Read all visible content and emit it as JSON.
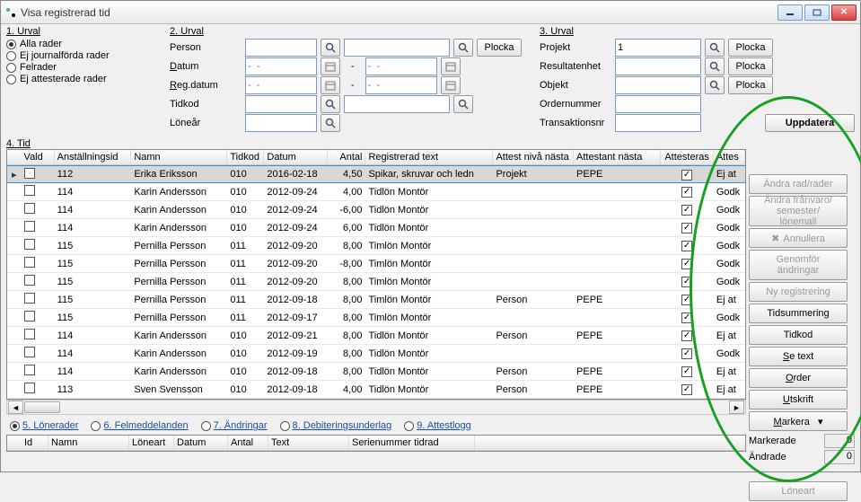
{
  "window": {
    "title": "Visa registrerad tid"
  },
  "winbtns": {
    "min": "—",
    "max": "❐",
    "close": "✕"
  },
  "urval1": {
    "label": "1. Urval",
    "options": [
      "Alla rader",
      "Ej journalförda rader",
      "Felrader",
      "Ej attesterade rader"
    ],
    "selected": 0
  },
  "urval2": {
    "label": "2. Urval",
    "rows": {
      "person": {
        "label": "Person"
      },
      "datum": {
        "label": "Datum",
        "ph": "-  -"
      },
      "regdatum": {
        "label": "Reg.datum",
        "ph": "-  -"
      },
      "tidkod": {
        "label": "Tidkod"
      },
      "lonear": {
        "label": "Löneår"
      }
    },
    "plocka": "Plocka"
  },
  "urval3": {
    "label": "3. Urval",
    "rows": {
      "projekt": {
        "label": "Projekt",
        "value": "1"
      },
      "resultatenhet": {
        "label": "Resultatenhet"
      },
      "objekt": {
        "label": "Objekt"
      },
      "ordernummer": {
        "label": "Ordernummer"
      },
      "transaktionsnr": {
        "label": "Transaktionsnr"
      }
    },
    "plocka": "Plocka",
    "uppdatera": "Uppdatera"
  },
  "grid": {
    "label": "4. Tid",
    "headers": [
      "Vald",
      "Anställningsid",
      "Namn",
      "Tidkod",
      "Datum",
      "Antal",
      "Registrerad text",
      "Attest nivå nästa",
      "Attestant nästa",
      "Attesteras",
      "Attes"
    ],
    "rows": [
      {
        "sel": true,
        "id": "112",
        "namn": "Erika Eriksson",
        "tkod": "010",
        "dat": "2016-02-18",
        "ant": "4,50",
        "reg": "Spikar, skruvar och ledn",
        "niva": "Projekt",
        "attn": "PEPE",
        "atts": true,
        "last": "Ej at"
      },
      {
        "id": "114",
        "namn": "Karin Andersson",
        "tkod": "010",
        "dat": "2012-09-24",
        "ant": "4,00",
        "reg": "Tidlön Montör",
        "niva": "",
        "attn": "",
        "atts": true,
        "last": "Godk"
      },
      {
        "id": "114",
        "namn": "Karin Andersson",
        "tkod": "010",
        "dat": "2012-09-24",
        "ant": "-6,00",
        "reg": "Tidlön Montör",
        "niva": "",
        "attn": "",
        "atts": true,
        "last": "Godk"
      },
      {
        "id": "114",
        "namn": "Karin Andersson",
        "tkod": "010",
        "dat": "2012-09-24",
        "ant": "6,00",
        "reg": "Tidlön Montör",
        "niva": "",
        "attn": "",
        "atts": true,
        "last": "Godk"
      },
      {
        "id": "115",
        "namn": "Pernilla Persson",
        "tkod": "011",
        "dat": "2012-09-20",
        "ant": "8,00",
        "reg": "Timlön Montör",
        "niva": "",
        "attn": "",
        "atts": true,
        "last": "Godk"
      },
      {
        "id": "115",
        "namn": "Pernilla Persson",
        "tkod": "011",
        "dat": "2012-09-20",
        "ant": "-8,00",
        "reg": "Timlön Montör",
        "niva": "",
        "attn": "",
        "atts": true,
        "last": "Godk"
      },
      {
        "id": "115",
        "namn": "Pernilla Persson",
        "tkod": "011",
        "dat": "2012-09-20",
        "ant": "8,00",
        "reg": "Timlön Montör",
        "niva": "",
        "attn": "",
        "atts": true,
        "last": "Godk"
      },
      {
        "id": "115",
        "namn": "Pernilla Persson",
        "tkod": "011",
        "dat": "2012-09-18",
        "ant": "8,00",
        "reg": "Timlön Montör",
        "niva": "Person",
        "attn": "PEPE",
        "atts": true,
        "last": "Ej at"
      },
      {
        "id": "115",
        "namn": "Pernilla Persson",
        "tkod": "011",
        "dat": "2012-09-17",
        "ant": "8,00",
        "reg": "Timlön Montör",
        "niva": "",
        "attn": "",
        "atts": true,
        "last": "Godk"
      },
      {
        "id": "114",
        "namn": "Karin Andersson",
        "tkod": "010",
        "dat": "2012-09-21",
        "ant": "8,00",
        "reg": "Tidlön Montör",
        "niva": "Person",
        "attn": "PEPE",
        "atts": true,
        "last": "Ej at"
      },
      {
        "id": "114",
        "namn": "Karin Andersson",
        "tkod": "010",
        "dat": "2012-09-19",
        "ant": "8,00",
        "reg": "Tidlön Montör",
        "niva": "",
        "attn": "",
        "atts": true,
        "last": "Godk"
      },
      {
        "id": "114",
        "namn": "Karin Andersson",
        "tkod": "010",
        "dat": "2012-09-18",
        "ant": "8,00",
        "reg": "Tidlön Montör",
        "niva": "Person",
        "attn": "PEPE",
        "atts": true,
        "last": "Ej at"
      },
      {
        "id": "113",
        "namn": "Sven Svensson",
        "tkod": "010",
        "dat": "2012-09-18",
        "ant": "4,00",
        "reg": "Tidlön Montör",
        "niva": "Person",
        "attn": "PEPE",
        "atts": true,
        "last": "Ej at"
      }
    ]
  },
  "sidebuttons": [
    {
      "label": "Ändra rad/rader",
      "disabled": true
    },
    {
      "label": "Ändra frånvaro/\nsemester/ lönemall",
      "disabled": true,
      "multi": true
    },
    {
      "label": "Annullera",
      "disabled": true,
      "icon": "x"
    },
    {
      "label": "Genomför\nändringar",
      "disabled": true,
      "multi": true
    },
    {
      "label": "Ny registrering",
      "disabled": true
    },
    {
      "label": "Tidsummering"
    },
    {
      "label": "Tidkod"
    },
    {
      "label": "Se text",
      "ul": "S"
    },
    {
      "label": "Order",
      "ul": "O"
    },
    {
      "label": "Utskrift",
      "ul": "U"
    },
    {
      "label": "Markera",
      "ul": "M",
      "drop": true
    }
  ],
  "stats": {
    "markerade": {
      "label": "Markerade",
      "val": "0"
    },
    "andrade": {
      "label": "Ändrade",
      "val": "0"
    }
  },
  "tabs": [
    {
      "label": "5. Lönerader",
      "active": true
    },
    {
      "label": "6. Felmeddelanden"
    },
    {
      "label": "7. Ändringar"
    },
    {
      "label": "8. Debiteringsunderlag"
    },
    {
      "label": "9. Attestlogg"
    }
  ],
  "grid2": {
    "headers": [
      "Id",
      "Namn",
      "Löneart",
      "Datum",
      "Antal",
      "Text",
      "Serienummer tidrad"
    ]
  },
  "loneart_btn": "Löneart"
}
